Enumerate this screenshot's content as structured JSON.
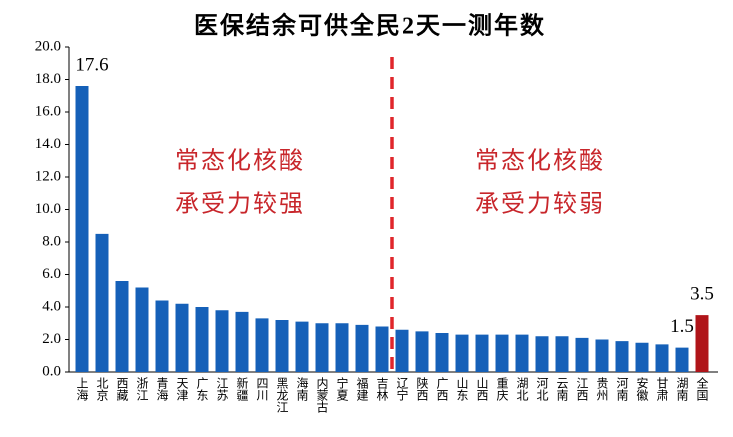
{
  "chart_data": {
    "type": "bar",
    "title": "医保结余可供全民2天一测年数",
    "categories": [
      "上海",
      "北京",
      "西藏",
      "浙江",
      "青海",
      "天津",
      "广东",
      "江苏",
      "新疆",
      "四川",
      "黑龙江",
      "海南",
      "内蒙古",
      "宁夏",
      "福建",
      "吉林",
      "辽宁",
      "陕西",
      "广西",
      "山东",
      "山西",
      "重庆",
      "湖北",
      "河北",
      "云南",
      "江西",
      "贵州",
      "河南",
      "安徽",
      "甘肃",
      "湖南",
      "全国"
    ],
    "values": [
      17.6,
      8.5,
      5.6,
      5.2,
      4.4,
      4.2,
      4.0,
      3.8,
      3.7,
      3.3,
      3.2,
      3.1,
      3.0,
      3.0,
      2.9,
      2.8,
      2.6,
      2.5,
      2.4,
      2.3,
      2.3,
      2.3,
      2.3,
      2.2,
      2.2,
      2.1,
      2.0,
      1.9,
      1.8,
      1.7,
      1.5,
      3.5
    ],
    "value_labels": [
      "17.6",
      null,
      null,
      null,
      null,
      null,
      null,
      null,
      null,
      null,
      null,
      null,
      null,
      null,
      null,
      null,
      null,
      null,
      null,
      null,
      null,
      null,
      null,
      null,
      null,
      null,
      null,
      null,
      null,
      null,
      "1.5",
      "3.5"
    ],
    "colors": [
      "#1560b8",
      "#1560b8",
      "#1560b8",
      "#1560b8",
      "#1560b8",
      "#1560b8",
      "#1560b8",
      "#1560b8",
      "#1560b8",
      "#1560b8",
      "#1560b8",
      "#1560b8",
      "#1560b8",
      "#1560b8",
      "#1560b8",
      "#1560b8",
      "#1560b8",
      "#1560b8",
      "#1560b8",
      "#1560b8",
      "#1560b8",
      "#1560b8",
      "#1560b8",
      "#1560b8",
      "#1560b8",
      "#1560b8",
      "#1560b8",
      "#1560b8",
      "#1560b8",
      "#1560b8",
      "#1560b8",
      "#b01419"
    ],
    "ylim": [
      0,
      20
    ],
    "yticks": [
      {
        "value": 0,
        "label": "0.0"
      },
      {
        "value": 2,
        "label": "2.0"
      },
      {
        "value": 4,
        "label": "4.0"
      },
      {
        "value": 6,
        "label": "6.0"
      },
      {
        "value": 8,
        "label": "8.0"
      },
      {
        "value": 10,
        "label": "10.0"
      },
      {
        "value": 12,
        "label": "12.0"
      },
      {
        "value": 14,
        "label": "14.0"
      },
      {
        "value": 16,
        "label": "16.0"
      },
      {
        "value": 18,
        "label": "18.0"
      },
      {
        "value": 20,
        "label": "20.0"
      }
    ],
    "annotations": [
      [
        "常态化核酸",
        "承受力较强"
      ],
      [
        "常态化核酸",
        "承受力较弱"
      ]
    ]
  }
}
